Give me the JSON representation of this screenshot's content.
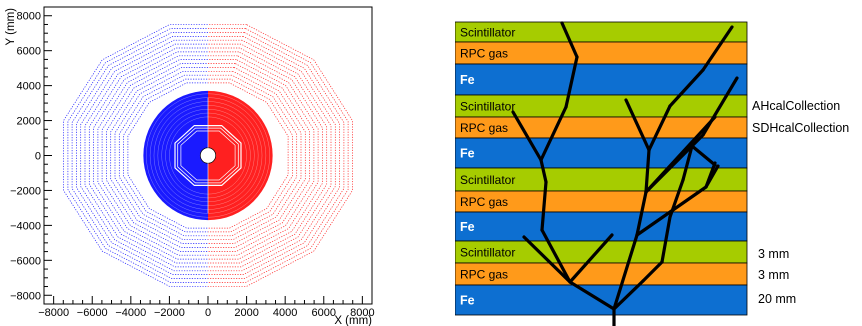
{
  "plot": {
    "xlabel": "X (mm)",
    "ylabel": "Y (mm)",
    "xlim": [
      -8500,
      8500
    ],
    "ylim": [
      -8500,
      8500
    ],
    "x_ticks": [
      "−8000",
      "−6000",
      "−4000",
      "−2000",
      "0",
      "2000",
      "4000",
      "6000",
      "8000"
    ],
    "y_ticks": [
      "8000",
      "6000",
      "4000",
      "2000",
      "0",
      "−2000",
      "−4000",
      "−6000",
      "−8000"
    ],
    "colors": {
      "left": "#1a1aff",
      "right": "#ff2020"
    }
  },
  "layers": [
    {
      "label": "Scintillator",
      "color": "#a6cc00"
    },
    {
      "label": "RPC gas",
      "color": "#ff9a1a"
    },
    {
      "label": "Fe",
      "color": "#0d6fd1"
    },
    {
      "label": "Scintillator",
      "color": "#a6cc00"
    },
    {
      "label": "RPC gas",
      "color": "#ff9a1a"
    },
    {
      "label": "Fe",
      "color": "#0d6fd1"
    },
    {
      "label": "Scintillator",
      "color": "#a6cc00"
    },
    {
      "label": "RPC gas",
      "color": "#ff9a1a"
    },
    {
      "label": "Fe",
      "color": "#0d6fd1"
    },
    {
      "label": "Scintillator",
      "color": "#a6cc00"
    },
    {
      "label": "RPC gas",
      "color": "#ff9a1a"
    },
    {
      "label": "Fe",
      "color": "#0d6fd1"
    }
  ],
  "collections": [
    "AHcalCollection",
    "SDHcalCollection"
  ],
  "thickness": [
    "3 mm",
    "3 mm",
    "20 mm"
  ]
}
